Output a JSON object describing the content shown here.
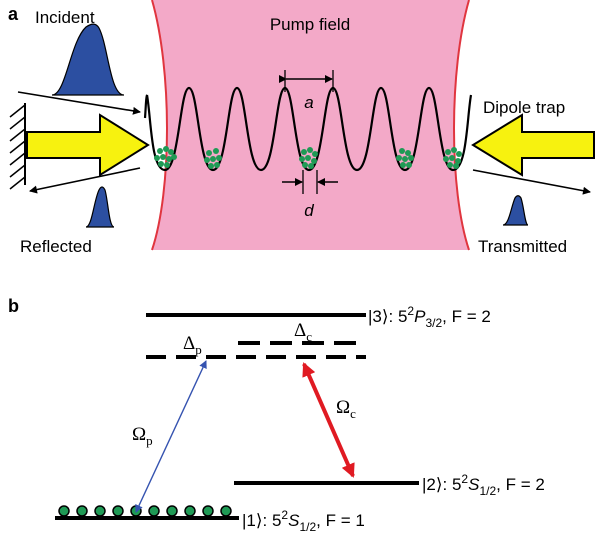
{
  "panel_a": {
    "label": "a",
    "pump_label": "Pump field",
    "incident_label": "Incident",
    "reflected_label": "Reflected",
    "transmitted_label": "Transmitted",
    "dipole_label": "Dipole trap",
    "a_label": "a",
    "d_label": "d"
  },
  "panel_b": {
    "label": "b",
    "level3": {
      "ket": "|3⟩",
      "state": ": 5",
      "sup": "2",
      "term": "P",
      "sub": "3/2",
      "f": ", F = 2"
    },
    "level2": {
      "ket": "|2⟩",
      "state": ": 5",
      "sup": "2",
      "term": "S",
      "sub": "1/2",
      "f": ", F = 2"
    },
    "level1": {
      "ket": "|1⟩",
      "state": ": 5",
      "sup": "2",
      "term": "S",
      "sub": "1/2",
      "f": ", F = 1"
    },
    "delta_p": {
      "sym": "Δ",
      "sub": "p"
    },
    "delta_c": {
      "sym": "Δ",
      "sub": "c"
    },
    "omega_p": {
      "sym": "Ω",
      "sub": "p"
    },
    "omega_c": {
      "sym": "Ω",
      "sub": "c"
    }
  },
  "colors": {
    "pump": "#f3a9c8",
    "pump_edge": "#e0353f",
    "arrow_yellow": "#f7f20f",
    "pulse_blue": "#2c4fa1",
    "atom_green": "#1f9a55",
    "probe_blue": "#3553b0",
    "coupling_red": "#e01a22"
  }
}
